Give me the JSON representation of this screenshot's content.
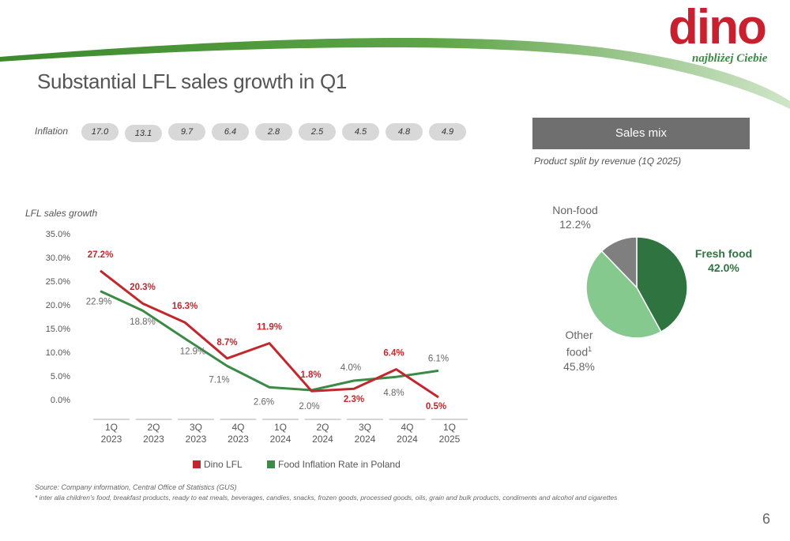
{
  "slide": {
    "title": "Substantial LFL sales growth in Q1",
    "page_number": "6"
  },
  "logo": {
    "word": "dino",
    "tagline": "najbliżej Ciebie"
  },
  "inflation": {
    "label": "Inflation",
    "values": [
      "17.0",
      "13.1",
      "9.7",
      "6.4",
      "2.8",
      "2.5",
      "4.5",
      "4.8",
      "4.9"
    ]
  },
  "colors": {
    "dino": "#c0282d",
    "inflation": "#3b8a45",
    "fresh": "#2e7340",
    "other": "#86c98f",
    "nonfood": "#7f7f7f",
    "header_bar": "#6f6f6f"
  },
  "chart_data": [
    {
      "type": "line",
      "title": "LFL sales growth",
      "categories": [
        [
          "1Q",
          "2023"
        ],
        [
          "2Q",
          "2023"
        ],
        [
          "3Q",
          "2023"
        ],
        [
          "4Q",
          "2023"
        ],
        [
          "1Q",
          "2024"
        ],
        [
          "2Q",
          "2024"
        ],
        [
          "3Q",
          "2024"
        ],
        [
          "4Q",
          "2024"
        ],
        [
          "1Q",
          "2025"
        ]
      ],
      "yticks": [
        "0.0%",
        "5.0%",
        "10.0%",
        "15.0%",
        "20.0%",
        "25.0%",
        "30.0%",
        "35.0%"
      ],
      "ylim": [
        0,
        35
      ],
      "series": [
        {
          "name": "Dino LFL",
          "color": "#c0282d",
          "values": [
            27.2,
            20.3,
            16.3,
            8.7,
            11.9,
            1.8,
            2.3,
            6.4,
            0.5
          ],
          "labels": [
            "27.2%",
            "20.3%",
            "16.3%",
            "8.7%",
            "11.9%",
            "1.8%",
            "2.3%",
            "6.4%",
            "0.5%"
          ]
        },
        {
          "name": "Food Inflation Rate in Poland",
          "color": "#3b8a45",
          "values": [
            22.9,
            18.8,
            12.9,
            7.1,
            2.6,
            2.0,
            4.0,
            4.8,
            6.1
          ],
          "labels": [
            "22.9%",
            "18.8%",
            "12.9%",
            "7.1%",
            "2.6%",
            "2.0%",
            "4.0%",
            "4.8%",
            "6.1%"
          ]
        }
      ]
    },
    {
      "type": "pie",
      "title": "Sales mix",
      "subtitle": "Product split by revenue (1Q 2025)",
      "slices": [
        {
          "name": "Fresh food",
          "value": 42.0,
          "label": "42.0%",
          "color": "#2e7340"
        },
        {
          "name": "Other food",
          "name_line1": "Other",
          "name_line2": "food",
          "footnote_mark": "1",
          "value": 45.8,
          "label": "45.8%",
          "color": "#86c98f"
        },
        {
          "name": "Non-food",
          "value": 12.2,
          "label": "12.2%",
          "color": "#7f7f7f"
        }
      ]
    }
  ],
  "footer": {
    "source": "Source:  Company information, Central Office of Statistics (GUS)",
    "footnote": "* inter alia children’s food, breakfast products, ready to eat meals, beverages, candies, snacks, frozen goods, processed goods, oils, grain and bulk products, condiments and alcohol and cigarettes"
  }
}
